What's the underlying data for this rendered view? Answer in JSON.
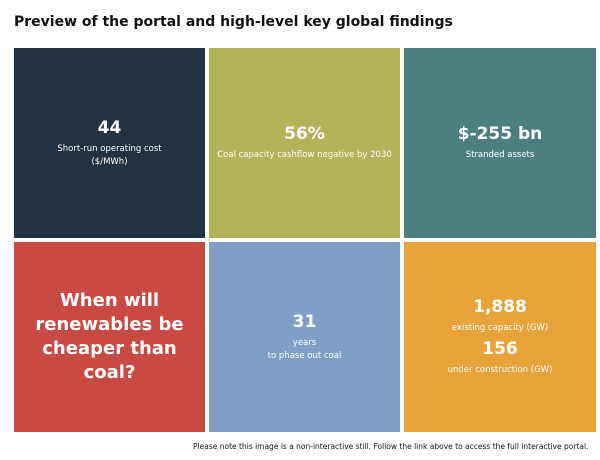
{
  "title": "Preview of the portal and high-level key global findings",
  "tiles": [
    {
      "value": "44",
      "label": "Short-run operating cost",
      "label2": "($/MWh)",
      "color": "#213244"
    },
    {
      "value": "56%",
      "label": "Coal capacity cashflow negative by 2030",
      "color": "#b3b35a"
    },
    {
      "value": "$-255 bn",
      "label": "Stranded assets",
      "color": "#4e7f7f"
    },
    {
      "question": "When will renewables be cheaper than coal?",
      "color": "#c84a42"
    },
    {
      "value": "31",
      "label": "years",
      "label2": "to phase out coal",
      "color": "#7f9fc6"
    },
    {
      "value": "1,888",
      "label": "existing capacity (GW)",
      "value2": "156",
      "label2": "under construction (GW)",
      "color": "#e8a33a"
    }
  ],
  "note": "Please note this image is a non-interactive still. Follow the link above to access the full interactive portal."
}
